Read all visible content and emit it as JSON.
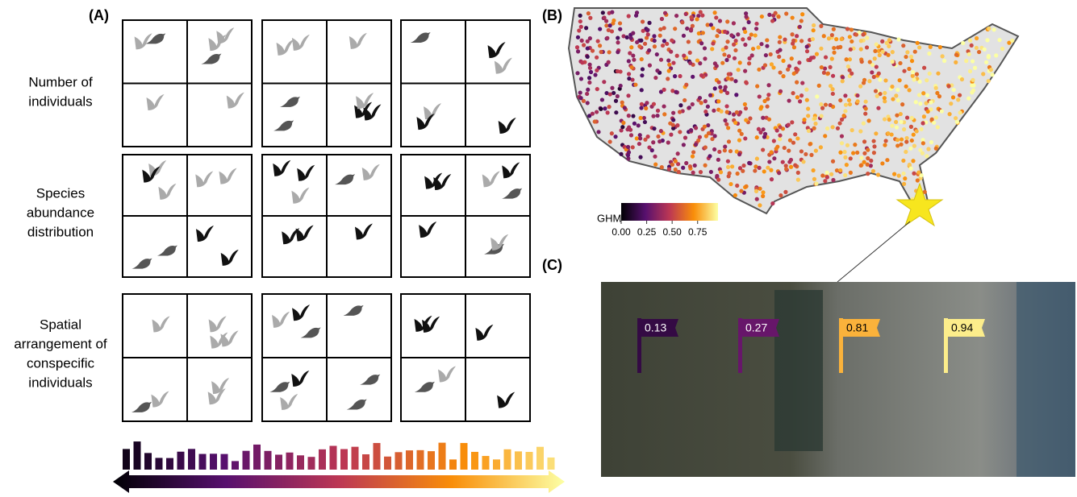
{
  "panels": {
    "a": "(A)",
    "b": "(B)",
    "c": "(C)"
  },
  "row_labels": [
    [
      "Number of",
      "individuals"
    ],
    [
      "Species",
      "abundance",
      "distribution"
    ],
    [
      "Spatial",
      "arrangement of",
      "conspecific",
      "individuals"
    ]
  ],
  "colorbar": {
    "title": "GHM",
    "lim": [
      0,
      0.95
    ],
    "ticks": [
      {
        "value": 0,
        "label": "0.00"
      },
      {
        "value": 0.25,
        "label": "0.25"
      },
      {
        "value": 0.5,
        "label": "0.50"
      },
      {
        "value": 0.75,
        "label": "0.75"
      }
    ]
  },
  "flags": [
    0.13,
    0.27,
    0.81,
    0.94
  ]
}
